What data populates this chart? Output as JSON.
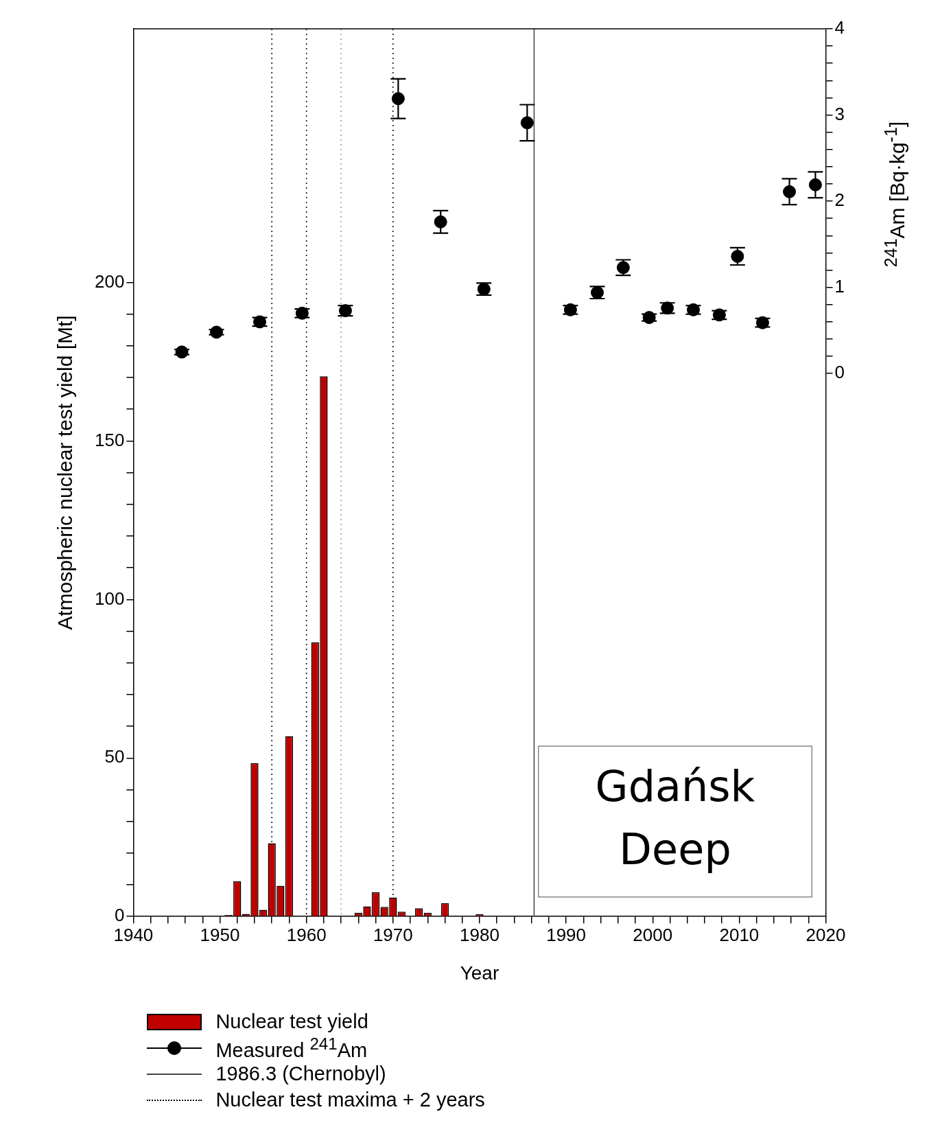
{
  "chart_data": {
    "type": "bar",
    "xlabel": "Year",
    "ylabel": "Atmospheric nuclear test yield [Mt]",
    "y2label": "$^{241}$Am [Bq·kg$^{-1}$]",
    "series": [
      {
        "name": "Nuclear test yield",
        "color": "#c00000",
        "x": [
          1945,
          1948,
          1949,
          1951,
          1952,
          1953,
          1954,
          1955,
          1956,
          1957,
          1958,
          1960,
          1961,
          1962,
          1966,
          1967,
          1968,
          1969,
          1970,
          1971,
          1973,
          1974,
          1976,
          1977,
          1978,
          1980
        ],
        "values": [
          0.1,
          0.1,
          0.1,
          0.5,
          11.1,
          0.8,
          48.4,
          2.1,
          23.1,
          9.7,
          56.9,
          0.1,
          86.5,
          170.4,
          1.2,
          3.2,
          7.6,
          3.0,
          6.0,
          1.5,
          2.6,
          1.2,
          4.2,
          0.1,
          0.1,
          0.7
        ]
      },
      {
        "name": "Measured $^{241}$Am",
        "type": "scatter",
        "axis": "y2",
        "color": "#000000",
        "x": [
          1945.6,
          1949.6,
          1954.6,
          1959.5,
          1964.5,
          1970.6,
          1975.5,
          1980.5,
          1985.5,
          1990.5,
          1993.6,
          1996.6,
          1999.6,
          2001.7,
          2004.7,
          2007.7,
          2009.8,
          2012.7,
          2015.8,
          2018.8
        ],
        "values": [
          0.25,
          0.48,
          0.6,
          0.7,
          0.73,
          3.19,
          1.76,
          0.98,
          2.91,
          0.74,
          0.94,
          1.23,
          0.65,
          0.76,
          0.74,
          0.68,
          1.36,
          0.59,
          2.11,
          2.19
        ],
        "errors": [
          0.03,
          0.03,
          0.05,
          0.05,
          0.06,
          0.23,
          0.13,
          0.07,
          0.21,
          0.05,
          0.07,
          0.09,
          0.04,
          0.06,
          0.05,
          0.05,
          0.1,
          0.05,
          0.15,
          0.15
        ]
      }
    ],
    "xlim": [
      1940,
      2020
    ],
    "xticks": [
      1940,
      {
        "value": 1942,
        "label": null
      },
      {
        "value": 1944,
        "label": null
      },
      {
        "value": 1946,
        "label": null
      },
      {
        "value": 1948,
        "label": null
      },
      1950,
      {
        "value": 1952,
        "label": null
      },
      {
        "value": 1954,
        "label": null
      },
      {
        "value": 1956,
        "label": null
      },
      {
        "value": 1958,
        "label": null
      },
      1960,
      {
        "value": 1962,
        "label": null
      },
      {
        "value": 1964,
        "label": null
      },
      {
        "value": 1966,
        "label": null
      },
      {
        "value": 1968,
        "label": null
      },
      1970,
      {
        "value": 1972,
        "label": null
      },
      {
        "value": 1974,
        "label": null
      },
      {
        "value": 1976,
        "label": null
      },
      {
        "value": 1978,
        "label": null
      },
      1980,
      {
        "value": 1982,
        "label": null
      },
      {
        "value": 1984,
        "label": null
      },
      {
        "value": 1986,
        "label": null
      },
      {
        "value": 1988,
        "label": null
      },
      1990,
      {
        "value": 1992,
        "label": null
      },
      {
        "value": 1994,
        "label": null
      },
      {
        "value": 1996,
        "label": null
      },
      {
        "value": 1998,
        "label": null
      },
      2000,
      {
        "value": 2002,
        "label": null
      },
      {
        "value": 2004,
        "label": null
      },
      {
        "value": 2006,
        "label": null
      },
      {
        "value": 2008,
        "label": null
      },
      2010,
      {
        "value": 2012,
        "label": null
      },
      {
        "value": 2014,
        "label": null
      },
      {
        "value": 2016,
        "label": null
      },
      {
        "value": 2018,
        "label": null
      },
      2020
    ],
    "ylim": [
      0,
      280
    ],
    "yticks": [
      0,
      {
        "value": 10,
        "label": null
      },
      {
        "value": 20,
        "label": null
      },
      {
        "value": 30,
        "label": null
      },
      {
        "value": 40,
        "label": null
      },
      50,
      {
        "value": 60,
        "label": null
      },
      {
        "value": 70,
        "label": null
      },
      {
        "value": 80,
        "label": null
      },
      {
        "value": 90,
        "label": null
      },
      100,
      {
        "value": 110,
        "label": null
      },
      {
        "value": 120,
        "label": null
      },
      {
        "value": 130,
        "label": null
      },
      {
        "value": 140,
        "label": null
      },
      150,
      {
        "value": 160,
        "label": null
      },
      {
        "value": 170,
        "label": null
      },
      {
        "value": 180,
        "label": null
      },
      {
        "value": 190,
        "label": null
      },
      200
    ],
    "y2lim": [
      -6.3,
      4
    ],
    "y2ticks": [
      0,
      {
        "value": 0.2,
        "label": null
      },
      {
        "value": 0.4,
        "label": null
      },
      {
        "value": 0.6,
        "label": null
      },
      {
        "value": 0.8,
        "label": null
      },
      1,
      {
        "value": 1.2,
        "label": null
      },
      {
        "value": 1.4,
        "label": null
      },
      {
        "value": 1.6,
        "label": null
      },
      {
        "value": 1.8,
        "label": null
      },
      2,
      {
        "value": 2.2,
        "label": null
      },
      {
        "value": 2.4,
        "label": null
      },
      {
        "value": 2.6,
        "label": null
      },
      {
        "value": 2.8,
        "label": null
      },
      3,
      {
        "value": 3.2,
        "label": null
      },
      {
        "value": 3.4,
        "label": null
      },
      {
        "value": 3.6,
        "label": null
      },
      {
        "value": 3.8,
        "label": null
      },
      4
    ],
    "ref_lines": [
      {
        "axis": "x",
        "value": 1986.3,
        "label": "1986.3 (Chernobyl)",
        "color": "#444444",
        "line_style": "solid"
      },
      {
        "axis": "x",
        "value": 1956,
        "label": "Nuclear test maxima + 2 years",
        "color": "#000000",
        "line_style": "dotted"
      },
      {
        "axis": "x",
        "value": 1960,
        "color": "#000000",
        "line_style": "dotted"
      },
      {
        "axis": "x",
        "value": 1964,
        "color": "#999999",
        "line_style": "dotted"
      },
      {
        "axis": "x",
        "value": 1970,
        "color": "#000000",
        "line_style": "dotted"
      }
    ],
    "annotations": [
      "Gdańsk Deep"
    ],
    "marker": "circle",
    "legend": "bottom",
    "grid": false
  }
}
